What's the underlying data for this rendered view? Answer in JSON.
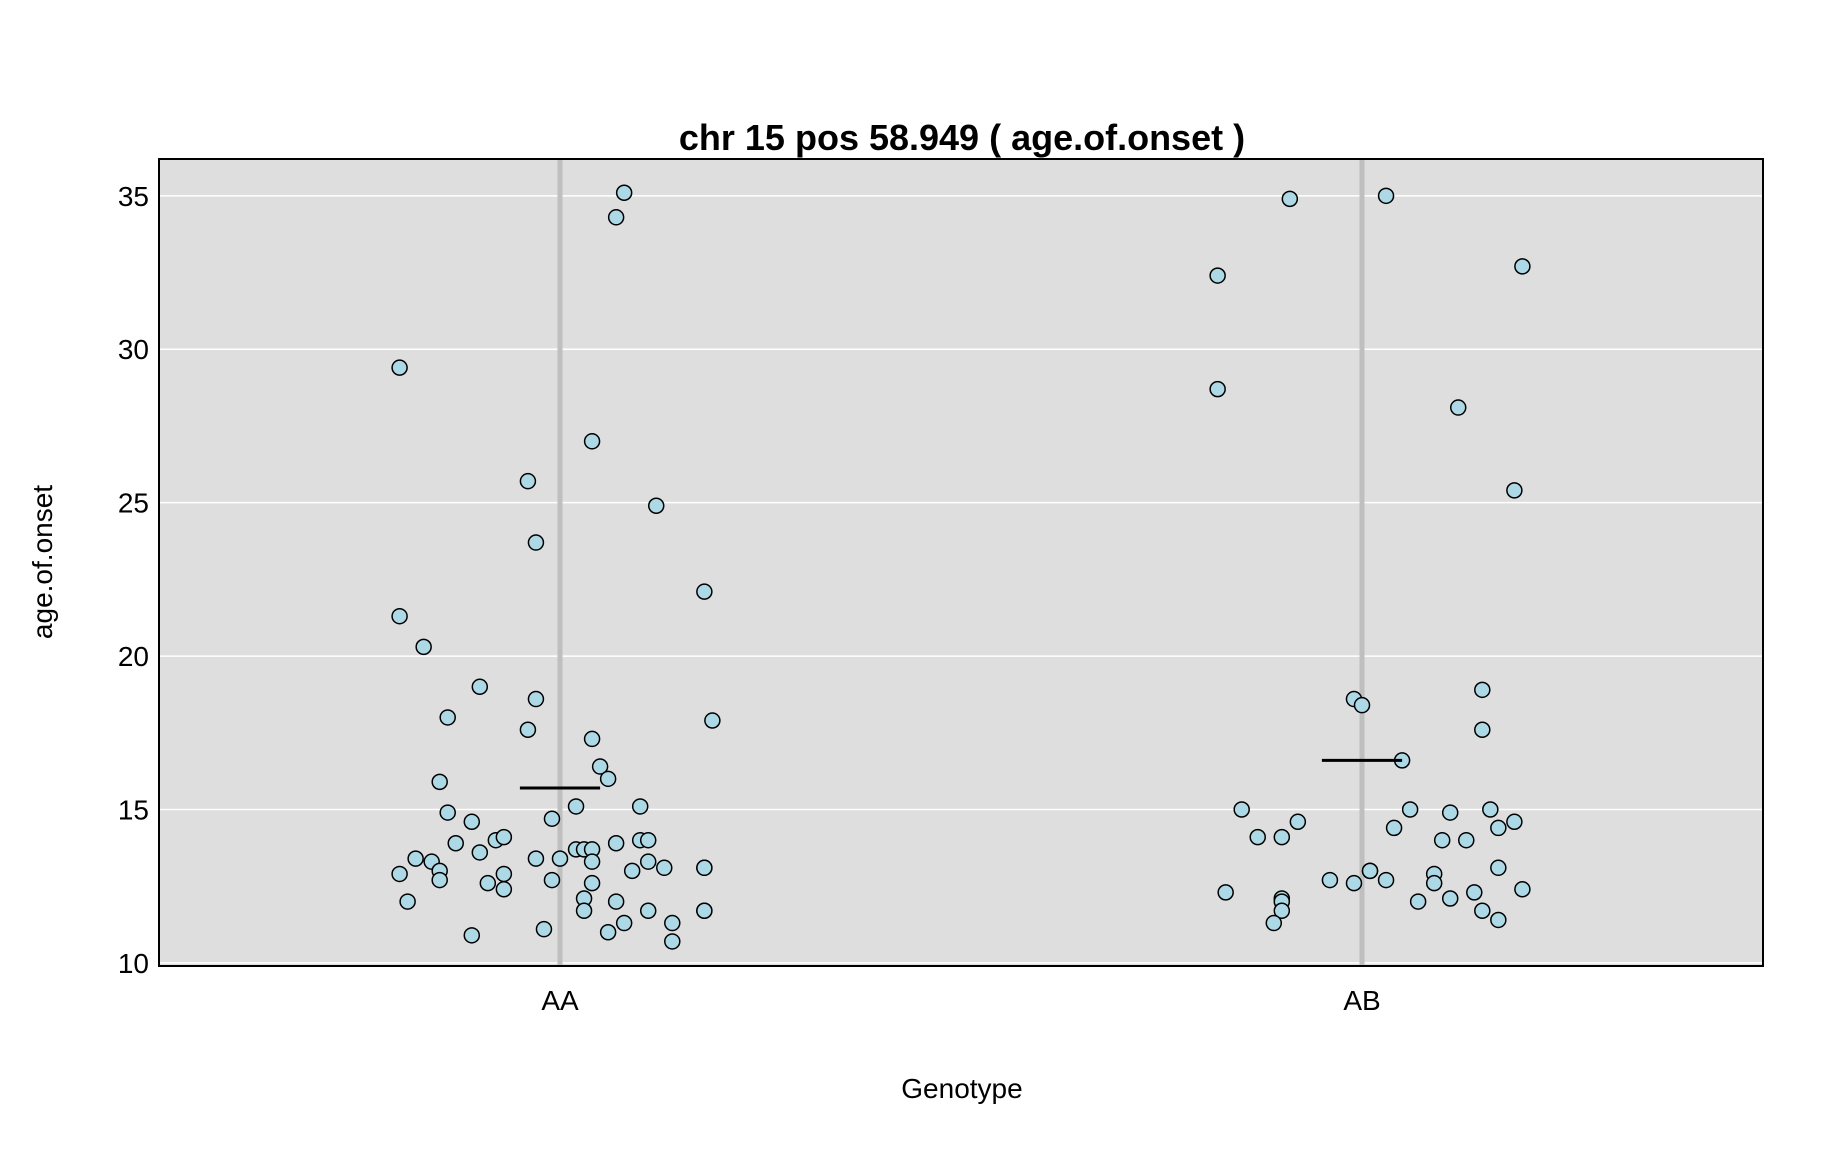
{
  "chart_data": {
    "type": "scatter",
    "title": "chr 15 pos 58.949 ( age.of.onset )",
    "xlabel": "Genotype",
    "ylabel": "age.of.onset",
    "categories": [
      "AA",
      "AB"
    ],
    "ylim": [
      9.9,
      36.2
    ],
    "yticks": [
      10,
      15,
      20,
      25,
      30,
      35
    ],
    "grid": true,
    "panel_background": "#dedede",
    "point_fill": "#add8e6",
    "point_stroke": "#000000",
    "mean_line_color": "#000000",
    "category_line_color": "#bfbfbf",
    "series": [
      {
        "category": "AA",
        "mean": 15.7,
        "points": [
          {
            "x": -0.2,
            "y": 29.4
          },
          {
            "x": -0.2,
            "y": 21.3
          },
          {
            "x": -0.17,
            "y": 20.3
          },
          {
            "x": -0.14,
            "y": 18.0
          },
          {
            "x": -0.1,
            "y": 19.0
          },
          {
            "x": -0.15,
            "y": 15.9
          },
          {
            "x": -0.14,
            "y": 14.9
          },
          {
            "x": -0.11,
            "y": 14.6
          },
          {
            "x": -0.13,
            "y": 13.9
          },
          {
            "x": -0.1,
            "y": 13.6
          },
          {
            "x": -0.08,
            "y": 14.0
          },
          {
            "x": -0.07,
            "y": 14.1
          },
          {
            "x": -0.18,
            "y": 13.4
          },
          {
            "x": -0.16,
            "y": 13.3
          },
          {
            "x": -0.2,
            "y": 12.9
          },
          {
            "x": -0.15,
            "y": 13.0
          },
          {
            "x": -0.15,
            "y": 12.7
          },
          {
            "x": -0.09,
            "y": 12.6
          },
          {
            "x": -0.07,
            "y": 12.9
          },
          {
            "x": -0.07,
            "y": 12.4
          },
          {
            "x": -0.19,
            "y": 12.0
          },
          {
            "x": -0.11,
            "y": 10.9
          },
          {
            "x": -0.04,
            "y": 25.7
          },
          {
            "x": -0.03,
            "y": 23.7
          },
          {
            "x": -0.03,
            "y": 18.6
          },
          {
            "x": -0.04,
            "y": 17.6
          },
          {
            "x": -0.01,
            "y": 14.7
          },
          {
            "x": 0.02,
            "y": 15.1
          },
          {
            "x": -0.03,
            "y": 13.4
          },
          {
            "x": 0.0,
            "y": 13.4
          },
          {
            "x": 0.02,
            "y": 13.7
          },
          {
            "x": 0.03,
            "y": 13.7
          },
          {
            "x": 0.04,
            "y": 13.7
          },
          {
            "x": 0.04,
            "y": 13.3
          },
          {
            "x": -0.01,
            "y": 12.7
          },
          {
            "x": 0.04,
            "y": 12.6
          },
          {
            "x": 0.03,
            "y": 12.1
          },
          {
            "x": 0.03,
            "y": 11.7
          },
          {
            "x": -0.02,
            "y": 11.1
          },
          {
            "x": 0.04,
            "y": 27.0
          },
          {
            "x": 0.07,
            "y": 34.3
          },
          {
            "x": 0.08,
            "y": 35.1
          },
          {
            "x": 0.12,
            "y": 24.9
          },
          {
            "x": 0.04,
            "y": 17.3
          },
          {
            "x": 0.05,
            "y": 16.4
          },
          {
            "x": 0.06,
            "y": 16.0
          },
          {
            "x": 0.1,
            "y": 15.1
          },
          {
            "x": 0.07,
            "y": 13.9
          },
          {
            "x": 0.1,
            "y": 14.0
          },
          {
            "x": 0.11,
            "y": 14.0
          },
          {
            "x": 0.09,
            "y": 13.0
          },
          {
            "x": 0.11,
            "y": 13.3
          },
          {
            "x": 0.13,
            "y": 13.1
          },
          {
            "x": 0.07,
            "y": 12.0
          },
          {
            "x": 0.11,
            "y": 11.7
          },
          {
            "x": 0.08,
            "y": 11.3
          },
          {
            "x": 0.06,
            "y": 11.0
          },
          {
            "x": 0.14,
            "y": 11.3
          },
          {
            "x": 0.14,
            "y": 10.7
          },
          {
            "x": 0.18,
            "y": 22.1
          },
          {
            "x": 0.19,
            "y": 17.9
          },
          {
            "x": 0.18,
            "y": 13.1
          },
          {
            "x": 0.18,
            "y": 13.1
          },
          {
            "x": 0.18,
            "y": 11.7
          },
          {
            "x": 0.18,
            "y": 11.7
          }
        ]
      },
      {
        "category": "AB",
        "mean": 16.6,
        "points": [
          {
            "x": -0.18,
            "y": 32.4
          },
          {
            "x": -0.18,
            "y": 28.7
          },
          {
            "x": -0.09,
            "y": 34.9
          },
          {
            "x": -0.15,
            "y": 15.0
          },
          {
            "x": -0.13,
            "y": 14.1
          },
          {
            "x": -0.1,
            "y": 14.1
          },
          {
            "x": -0.08,
            "y": 14.6
          },
          {
            "x": -0.17,
            "y": 12.3
          },
          {
            "x": -0.1,
            "y": 12.1
          },
          {
            "x": -0.1,
            "y": 12.0
          },
          {
            "x": -0.1,
            "y": 11.7
          },
          {
            "x": -0.11,
            "y": 11.3
          },
          {
            "x": -0.04,
            "y": 12.7
          },
          {
            "x": -0.01,
            "y": 18.6
          },
          {
            "x": 0.0,
            "y": 18.4
          },
          {
            "x": -0.01,
            "y": 12.6
          },
          {
            "x": 0.01,
            "y": 13.0
          },
          {
            "x": 0.01,
            "y": 13.0
          },
          {
            "x": 0.03,
            "y": 35.0
          },
          {
            "x": 0.05,
            "y": 16.6
          },
          {
            "x": 0.06,
            "y": 15.0
          },
          {
            "x": 0.04,
            "y": 14.4
          },
          {
            "x": 0.03,
            "y": 12.7
          },
          {
            "x": 0.07,
            "y": 12.0
          },
          {
            "x": 0.12,
            "y": 28.1
          },
          {
            "x": 0.09,
            "y": 12.9
          },
          {
            "x": 0.09,
            "y": 12.6
          },
          {
            "x": 0.1,
            "y": 14.0
          },
          {
            "x": 0.11,
            "y": 12.1
          },
          {
            "x": 0.11,
            "y": 14.9
          },
          {
            "x": 0.13,
            "y": 14.0
          },
          {
            "x": 0.15,
            "y": 18.9
          },
          {
            "x": 0.15,
            "y": 17.6
          },
          {
            "x": 0.16,
            "y": 15.0
          },
          {
            "x": 0.17,
            "y": 14.4
          },
          {
            "x": 0.14,
            "y": 12.3
          },
          {
            "x": 0.15,
            "y": 11.7
          },
          {
            "x": 0.17,
            "y": 13.1
          },
          {
            "x": 0.17,
            "y": 11.4
          },
          {
            "x": 0.19,
            "y": 14.6
          },
          {
            "x": 0.2,
            "y": 12.4
          },
          {
            "x": 0.19,
            "y": 25.4
          },
          {
            "x": 0.2,
            "y": 32.7
          }
        ]
      }
    ]
  }
}
